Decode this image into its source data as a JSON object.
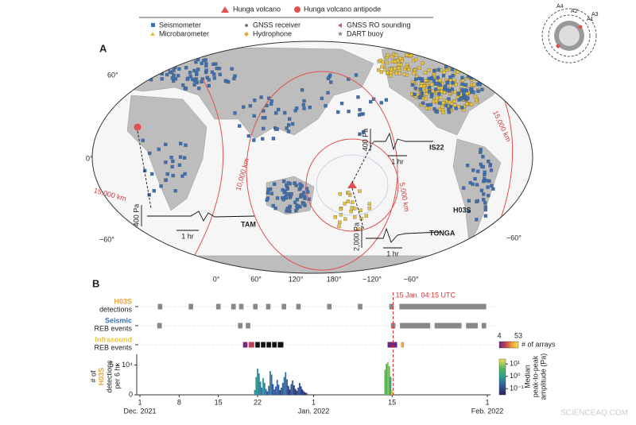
{
  "legend": {
    "hunga": "Hunga volcano",
    "antipode": "Hunga volcano antipode",
    "seismometer": "Seismometer",
    "gnss": "GNSS receiver",
    "gnss_ro": "GNSS RO sounding",
    "microbarometer": "Microbarometer",
    "hydrophone": "Hydrophone",
    "dart": "DART buoy"
  },
  "inset": {
    "labels": [
      "A4",
      "A2",
      "A1",
      "A3"
    ]
  },
  "panel_a": {
    "label": "A",
    "lat_labels": [
      "60°",
      "0°",
      "−60°",
      "−60°"
    ],
    "lon_labels": [
      "0°",
      "60°",
      "120°",
      "180°",
      "−120°",
      "−60°"
    ],
    "distance_labels": [
      "15,000 km",
      "10,000 km",
      "5,000 km",
      "15,000 km"
    ],
    "stations": [
      {
        "name": "TAM",
        "amplitude": "400 Pa",
        "time": "1 hr"
      },
      {
        "name": "IS22",
        "amplitude": "400 Pa",
        "time": "1 hr"
      },
      {
        "name": "TONGA",
        "amplitude": "2,000 Pa",
        "time": "1 hr"
      },
      {
        "name": "H03S"
      }
    ]
  },
  "chart_data": {
    "type": "bar",
    "label": "B",
    "event_label": "15 Jan. 04:15 UTC",
    "event_x": 45.18,
    "rows": [
      {
        "name": "H03S",
        "sub": "detections",
        "color": "#e8a33a",
        "starts": [
          3.2,
          8.7,
          13.6,
          16.3,
          17.7,
          20.2,
          22.5,
          25.3,
          27.9,
          33.4,
          38.9,
          44.5,
          46.3
        ],
        "ends": [
          4.0,
          9.5,
          14.4,
          17.1,
          18.5,
          21.0,
          23.3,
          26.1,
          28.7,
          34.2,
          39.7,
          45.3,
          61.8
        ]
      },
      {
        "name": "Seismic",
        "sub": "REB events",
        "color": "#3b6fb6",
        "starts": [
          3.1,
          17.5,
          18.9,
          44.8,
          46.4,
          52.6,
          58.2,
          61.0
        ],
        "ends": [
          3.9,
          18.3,
          19.7,
          45.6,
          51.8,
          57.4,
          60.3,
          61.8
        ]
      },
      {
        "name": "Infrasound",
        "sub": "REB events",
        "color": "#e8c23a",
        "starts": [
          18.4,
          19.4,
          20.6,
          21.6,
          22.6,
          23.6,
          24.6,
          44.2,
          46.6
        ],
        "ends": [
          19.2,
          20.4,
          21.4,
          22.4,
          23.4,
          24.4,
          25.6,
          45.9,
          47.1
        ],
        "colors": [
          "#7a2a7a",
          "#c0405a",
          "#111111",
          "#111111",
          "#111111",
          "#111111",
          "#111111",
          "#6a2a82",
          "#f0a030"
        ]
      }
    ],
    "arrays_colorbar": {
      "ticks": [
        4,
        53
      ],
      "label": "# of arrays"
    },
    "ylabel": [
      "# of",
      "H03S",
      "detections",
      "per 6 hr"
    ],
    "x": [
      20.5,
      20.75,
      21,
      21.25,
      21.5,
      21.75,
      22,
      22.25,
      22.5,
      22.75,
      23,
      23.25,
      23.5,
      23.75,
      24,
      24.25,
      24.5,
      24.75,
      25,
      25.25,
      25.5,
      25.75,
      26,
      26.25,
      26.5,
      26.75,
      27,
      27.25,
      27.5,
      27.75,
      28,
      28.25,
      28.5,
      28.75,
      29,
      29.25,
      29.5,
      29.75,
      43.75,
      44,
      44.25,
      44.5,
      44.75,
      45
    ],
    "values": [
      8000,
      30000,
      44000,
      36000,
      22000,
      12000,
      28000,
      20000,
      10000,
      6000,
      15000,
      40000,
      34000,
      18000,
      9000,
      14000,
      25000,
      17000,
      8000,
      12000,
      20000,
      30000,
      38000,
      26000,
      15000,
      9000,
      18000,
      24000,
      16000,
      10000,
      7000,
      12000,
      20000,
      14000,
      9000,
      6000,
      4000,
      3000,
      42000,
      52000,
      55000,
      48000,
      30000,
      8000
    ],
    "colors": [
      "#2a8f8f",
      "#2a9d8f",
      "#2a8f9a",
      "#2f7fa0",
      "#2f7fa0",
      "#336ea8",
      "#2a9d8f",
      "#2f7fa0",
      "#336ea8",
      "#34589c",
      "#336ea8",
      "#2f7fa0",
      "#336ea8",
      "#34589c",
      "#34589c",
      "#34589c",
      "#336ea8",
      "#34589c",
      "#2f3a7a",
      "#34589c",
      "#34589c",
      "#2f7fa0",
      "#336ea8",
      "#34589c",
      "#2f3a7a",
      "#2f3a7a",
      "#34589c",
      "#34589c",
      "#2f3a7a",
      "#2f3a7a",
      "#2f3a7a",
      "#34589c",
      "#34589c",
      "#2f3a7a",
      "#2f3a7a",
      "#2f3a7a",
      "#2f3a7a",
      "#2f3a7a",
      "#5cb85c",
      "#4caf50",
      "#8bc34a",
      "#6ab04c",
      "#2a9d8f",
      "#ffd700"
    ],
    "xlim": [
      0,
      62
    ],
    "ylim": [
      0,
      60000
    ],
    "yticks": [
      0,
      {
        "value": 50000,
        "label": "5 × 10⁴"
      }
    ],
    "xticks": [
      {
        "value": 0,
        "label": "1"
      },
      {
        "value": 7,
        "label": "8"
      },
      {
        "value": 14,
        "label": "15"
      },
      {
        "value": 21,
        "label": "22"
      },
      {
        "value": 31,
        "label": "1"
      },
      {
        "value": 45,
        "label": "15"
      },
      {
        "value": 62,
        "label": "1"
      }
    ],
    "month_labels": [
      {
        "value": 0,
        "label": "Dec. 2021"
      },
      {
        "value": 31,
        "label": "Jan. 2022"
      },
      {
        "value": 62,
        "label": "Feb. 2022"
      }
    ],
    "amplitude_colorbar": {
      "lim": [
        -1.5,
        1.4
      ],
      "ticks": [
        {
          "value": 1,
          "label": "10¹"
        },
        {
          "value": 0,
          "label": "10⁰"
        },
        {
          "value": -1,
          "label": "10⁻¹"
        }
      ],
      "label": [
        "Median",
        "peak-to-peak",
        "amplitude (Pa)"
      ]
    }
  },
  "watermark": "SCIENCEAQ.COM"
}
